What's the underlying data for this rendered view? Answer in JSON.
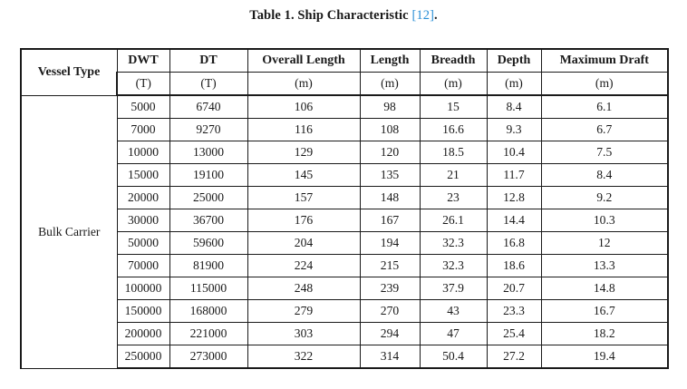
{
  "caption": {
    "text": "Table 1. Ship Characteristic ",
    "ref": "[12]",
    "end": "."
  },
  "table": {
    "headers": [
      "Vessel Type",
      "DWT",
      "DT",
      "Overall Length",
      "Length",
      "Breadth",
      "Depth",
      "Maximum Draft"
    ],
    "units": [
      "(T)",
      "(T)",
      "(m)",
      "(m)",
      "(m)",
      "(m)",
      "(m)"
    ],
    "vessel_type": "Bulk Carrier",
    "rows": [
      [
        "5000",
        "6740",
        "106",
        "98",
        "15",
        "8.4",
        "6.1"
      ],
      [
        "7000",
        "9270",
        "116",
        "108",
        "16.6",
        "9.3",
        "6.7"
      ],
      [
        "10000",
        "13000",
        "129",
        "120",
        "18.5",
        "10.4",
        "7.5"
      ],
      [
        "15000",
        "19100",
        "145",
        "135",
        "21",
        "11.7",
        "8.4"
      ],
      [
        "20000",
        "25000",
        "157",
        "148",
        "23",
        "12.8",
        "9.2"
      ],
      [
        "30000",
        "36700",
        "176",
        "167",
        "26.1",
        "14.4",
        "10.3"
      ],
      [
        "50000",
        "59600",
        "204",
        "194",
        "32.3",
        "16.8",
        "12"
      ],
      [
        "70000",
        "81900",
        "224",
        "215",
        "32.3",
        "18.6",
        "13.3"
      ],
      [
        "100000",
        "115000",
        "248",
        "239",
        "37.9",
        "20.7",
        "14.8"
      ],
      [
        "150000",
        "168000",
        "279",
        "270",
        "43",
        "23.3",
        "16.7"
      ],
      [
        "200000",
        "221000",
        "303",
        "294",
        "47",
        "25.4",
        "18.2"
      ],
      [
        "250000",
        "273000",
        "322",
        "314",
        "50.4",
        "27.2",
        "19.4"
      ]
    ]
  }
}
